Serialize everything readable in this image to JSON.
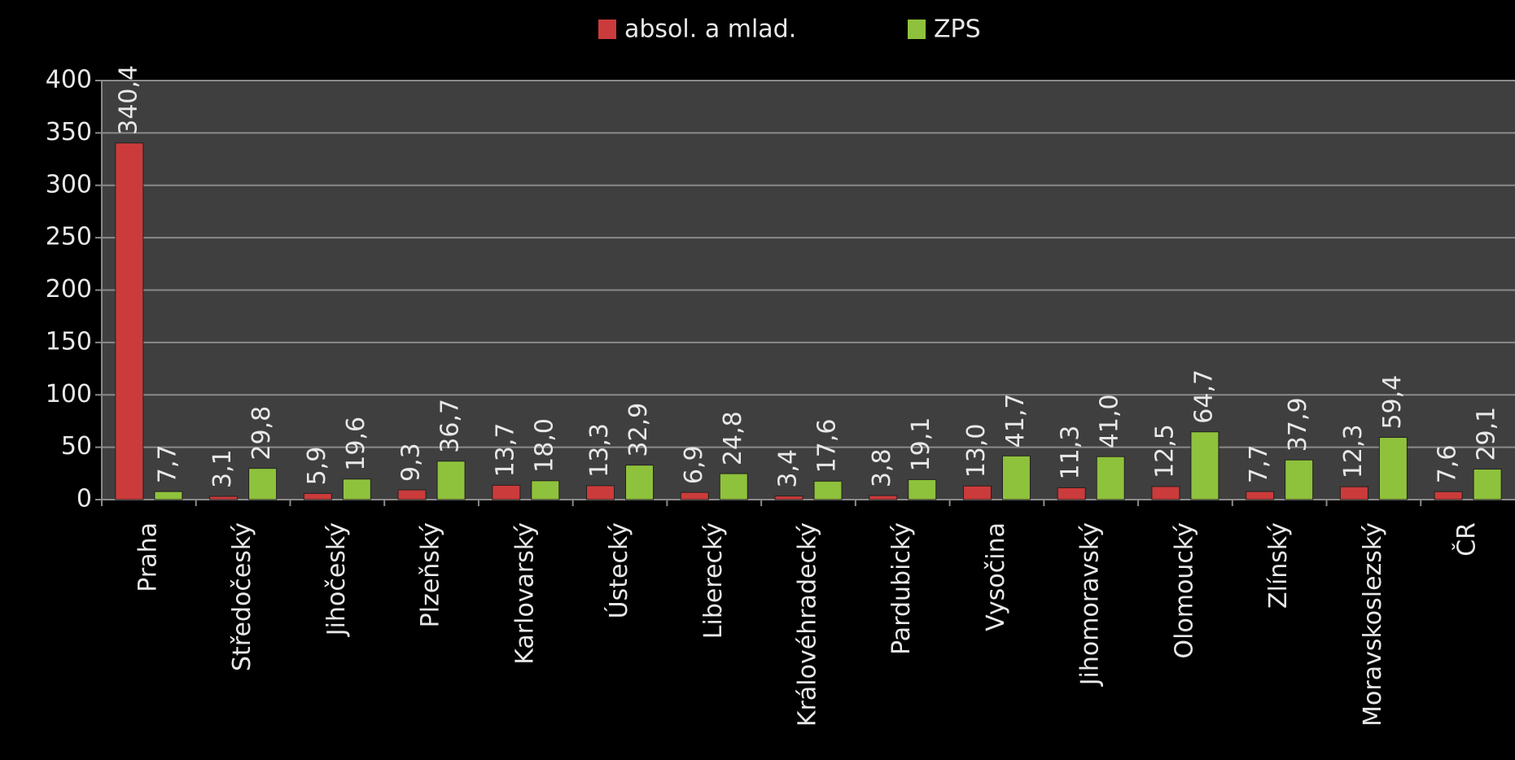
{
  "chart_data": {
    "type": "bar",
    "categories": [
      "Praha",
      "Středočeský",
      "Jihočeský",
      "Plzeňský",
      "Karlovarský",
      "Ústecký",
      "Liberecký",
      "Královéhradecký",
      "Pardubický",
      "Vysočina",
      "Jihomoravský",
      "Olomoucký",
      "Zlínský",
      "Moravskoslezský",
      "ČR"
    ],
    "series": [
      {
        "name": "absol. a mlad.",
        "color": "#cc3b3b",
        "values": [
          340.4,
          3.1,
          5.9,
          9.3,
          13.7,
          13.3,
          6.9,
          3.4,
          3.8,
          13.0,
          11.3,
          12.5,
          7.7,
          12.3,
          7.6
        ],
        "value_labels": [
          "340,4",
          "3,1",
          "5,9",
          "9,3",
          "13,7",
          "13,3",
          "6,9",
          "3,4",
          "3,8",
          "13,0",
          "11,3",
          "12,5",
          "7,7",
          "12,3",
          "7,6"
        ]
      },
      {
        "name": "ZPS",
        "color": "#8fc23c",
        "values": [
          7.7,
          29.8,
          19.6,
          36.7,
          18.0,
          32.9,
          24.8,
          17.6,
          19.1,
          41.7,
          41.0,
          64.7,
          37.9,
          59.4,
          29.1
        ],
        "value_labels": [
          "7,7",
          "29,8",
          "19,6",
          "36,7",
          "18,0",
          "32,9",
          "24,8",
          "17,6",
          "19,1",
          "41,7",
          "41,0",
          "64,7",
          "37,9",
          "59,4",
          "29,1"
        ]
      }
    ],
    "ylim": [
      0,
      400
    ],
    "yticks": [
      0,
      50,
      100,
      150,
      200,
      250,
      300,
      350,
      400
    ],
    "grid": true,
    "legend": "top"
  }
}
